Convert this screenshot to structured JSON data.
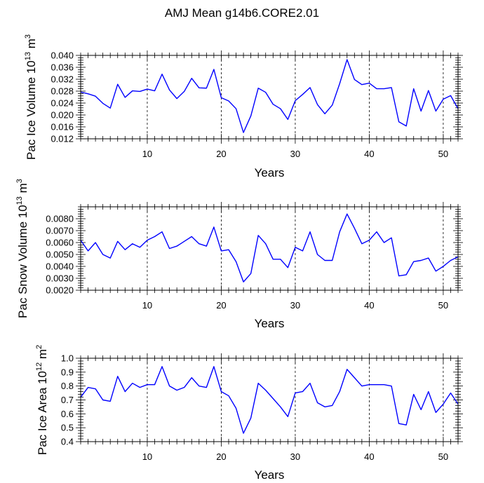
{
  "title": "AMJ Mean g14b6.CORE2.01",
  "chart_data": [
    {
      "type": "line",
      "title": "AMJ Mean g14b6.CORE2.01",
      "xlabel": "Years",
      "ylabel": {
        "text": "Pac Ice Volume 10",
        "sup": "13",
        "unit": " m",
        "unit_sup": "3"
      },
      "xlim": [
        1,
        52
      ],
      "ylim": [
        0.012,
        0.04
      ],
      "xticks": [
        10,
        20,
        30,
        40,
        50
      ],
      "xtick_labels": [
        "10",
        "20",
        "30",
        "40",
        "50"
      ],
      "yticks": [
        0.012,
        0.016,
        0.02,
        0.024,
        0.028,
        0.032,
        0.036,
        0.04
      ],
      "ytick_labels": [
        "0.012",
        "0.016",
        "0.020",
        "0.024",
        "0.028",
        "0.032",
        "0.036",
        "0.040"
      ],
      "color": "#0000ff",
      "x": [
        1,
        2,
        3,
        4,
        5,
        6,
        7,
        8,
        9,
        10,
        11,
        12,
        13,
        14,
        15,
        16,
        17,
        18,
        19,
        20,
        21,
        22,
        23,
        24,
        25,
        26,
        27,
        28,
        29,
        30,
        31,
        32,
        33,
        34,
        35,
        36,
        37,
        38,
        39,
        40,
        41,
        42,
        43,
        44,
        45,
        46,
        47,
        48,
        49,
        50,
        51,
        52
      ],
      "values": [
        0.0277,
        0.0271,
        0.0263,
        0.0239,
        0.0223,
        0.0303,
        0.0259,
        0.0281,
        0.0279,
        0.0287,
        0.0281,
        0.0337,
        0.0284,
        0.0255,
        0.0279,
        0.0323,
        0.0291,
        0.029,
        0.0353,
        0.0258,
        0.0247,
        0.0221,
        0.0141,
        0.0197,
        0.029,
        0.0276,
        0.0236,
        0.0221,
        0.0185,
        0.0248,
        0.0269,
        0.0292,
        0.0235,
        0.0204,
        0.0233,
        0.0305,
        0.0386,
        0.0319,
        0.0302,
        0.0307,
        0.0288,
        0.0288,
        0.0292,
        0.0177,
        0.0163,
        0.0288,
        0.0213,
        0.0282,
        0.0213,
        0.0253,
        0.0265,
        0.0221
      ]
    },
    {
      "type": "line",
      "xlabel": "Years",
      "ylabel": {
        "text": "Pac Snow Volume 10",
        "sup": "13",
        "unit": " m",
        "unit_sup": "3"
      },
      "xlim": [
        1,
        52
      ],
      "ylim": [
        0.002,
        0.009
      ],
      "xticks": [
        10,
        20,
        30,
        40,
        50
      ],
      "xtick_labels": [
        "10",
        "20",
        "30",
        "40",
        "50"
      ],
      "yticks": [
        0.002,
        0.003,
        0.004,
        0.005,
        0.006,
        0.007,
        0.008
      ],
      "ytick_labels": [
        "0.0020",
        "0.0030",
        "0.0040",
        "0.0050",
        "0.0060",
        "0.0070",
        "0.0080"
      ],
      "color": "#0000ff",
      "x": [
        1,
        2,
        3,
        4,
        5,
        6,
        7,
        8,
        9,
        10,
        11,
        12,
        13,
        14,
        15,
        16,
        17,
        18,
        19,
        20,
        21,
        22,
        23,
        24,
        25,
        26,
        27,
        28,
        29,
        30,
        31,
        32,
        33,
        34,
        35,
        36,
        37,
        38,
        39,
        40,
        41,
        42,
        43,
        44,
        45,
        46,
        47,
        48,
        49,
        50,
        51,
        52
      ],
      "values": [
        0.0062,
        0.0053,
        0.006,
        0.005,
        0.0047,
        0.0061,
        0.0054,
        0.0059,
        0.0056,
        0.0062,
        0.0065,
        0.0069,
        0.0055,
        0.0057,
        0.0061,
        0.0065,
        0.0059,
        0.0057,
        0.0073,
        0.0053,
        0.0054,
        0.0044,
        0.0027,
        0.0034,
        0.0066,
        0.0059,
        0.0046,
        0.0046,
        0.0039,
        0.0056,
        0.0053,
        0.0069,
        0.005,
        0.0045,
        0.0045,
        0.0069,
        0.0084,
        0.0072,
        0.0059,
        0.0062,
        0.0069,
        0.006,
        0.0064,
        0.0032,
        0.0033,
        0.0044,
        0.0045,
        0.0047,
        0.0036,
        0.004,
        0.0045,
        0.0048
      ]
    },
    {
      "type": "line",
      "xlabel": "Years",
      "ylabel": {
        "text": "Pac Ice Area 10",
        "sup": "12",
        "unit": " m",
        "unit_sup": "2"
      },
      "xlim": [
        1,
        52
      ],
      "ylim": [
        0.4,
        1.0
      ],
      "xticks": [
        10,
        20,
        30,
        40,
        50
      ],
      "xtick_labels": [
        "10",
        "20",
        "30",
        "40",
        "50"
      ],
      "yticks": [
        0.4,
        0.5,
        0.6,
        0.7,
        0.8,
        0.9,
        1.0
      ],
      "ytick_labels": [
        "0.4",
        "0.5",
        "0.6",
        "0.7",
        "0.8",
        "0.9",
        "1.0"
      ],
      "color": "#0000ff",
      "x": [
        1,
        2,
        3,
        4,
        5,
        6,
        7,
        8,
        9,
        10,
        11,
        12,
        13,
        14,
        15,
        16,
        17,
        18,
        19,
        20,
        21,
        22,
        23,
        24,
        25,
        26,
        27,
        28,
        29,
        30,
        31,
        32,
        33,
        34,
        35,
        36,
        37,
        38,
        39,
        40,
        41,
        42,
        43,
        44,
        45,
        46,
        47,
        48,
        49,
        50,
        51,
        52
      ],
      "values": [
        0.72,
        0.79,
        0.78,
        0.7,
        0.69,
        0.87,
        0.76,
        0.82,
        0.79,
        0.81,
        0.81,
        0.94,
        0.8,
        0.77,
        0.79,
        0.86,
        0.8,
        0.79,
        0.94,
        0.76,
        0.73,
        0.64,
        0.46,
        0.57,
        0.82,
        0.77,
        0.71,
        0.65,
        0.58,
        0.75,
        0.76,
        0.82,
        0.68,
        0.65,
        0.66,
        0.76,
        0.92,
        0.86,
        0.8,
        0.81,
        0.81,
        0.81,
        0.8,
        0.53,
        0.52,
        0.74,
        0.63,
        0.76,
        0.61,
        0.67,
        0.75,
        0.67
      ]
    }
  ]
}
